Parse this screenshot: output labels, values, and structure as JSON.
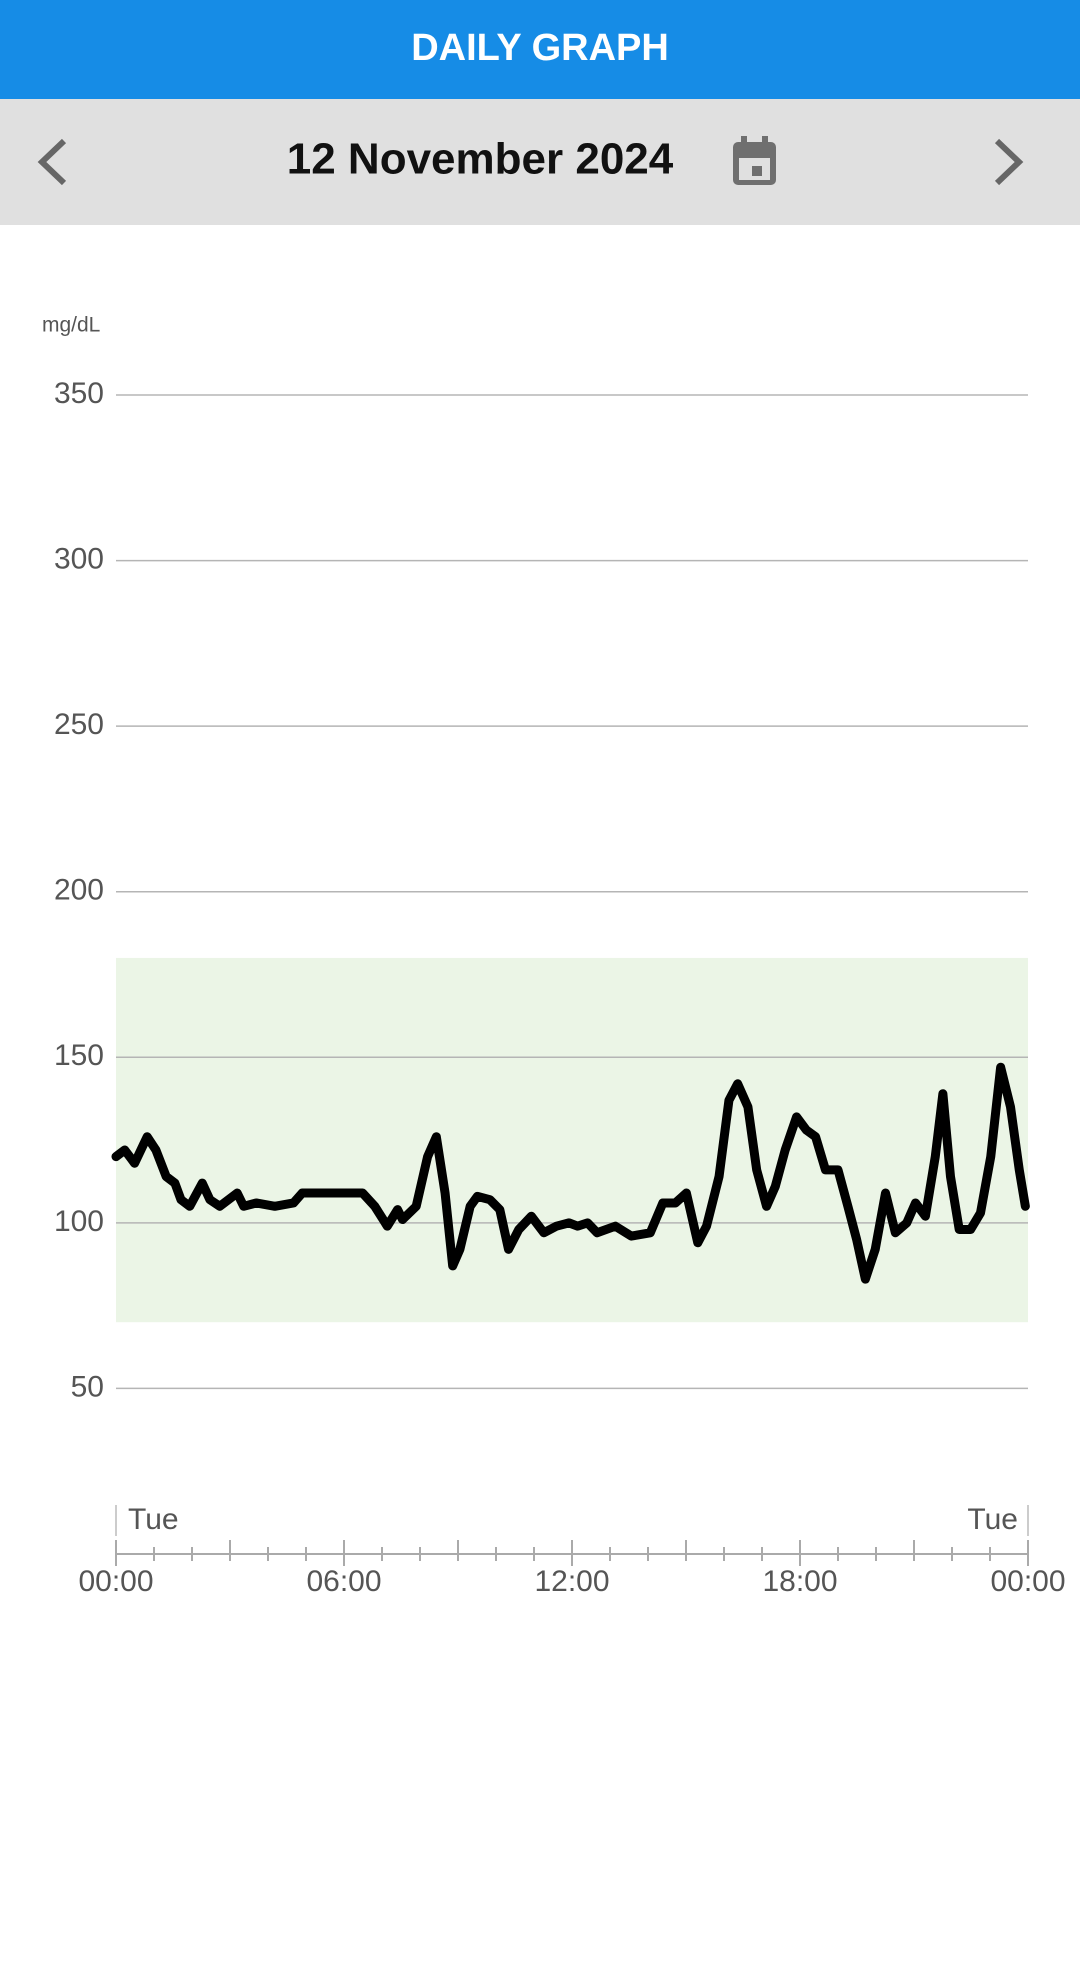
{
  "header": {
    "title": "DAILY GRAPH"
  },
  "date_bar": {
    "date": "12 November 2024"
  },
  "chart_data": {
    "type": "line",
    "y_unit": "mg/dL",
    "x": [
      0,
      0.23,
      0.49,
      0.82,
      1.05,
      1.32,
      1.55,
      1.71,
      1.94,
      2.27,
      2.47,
      2.73,
      3.19,
      3.36,
      3.69,
      4.18,
      4.67,
      4.9,
      5.43,
      5.83,
      6.49,
      6.81,
      7.14,
      7.41,
      7.54,
      7.9,
      8.2,
      8.43,
      8.66,
      8.86,
      9.05,
      9.32,
      9.51,
      9.84,
      10.1,
      10.33,
      10.6,
      10.93,
      11.26,
      11.59,
      11.92,
      12.15,
      12.41,
      12.66,
      13.14,
      13.56,
      14.06,
      14.39,
      14.72,
      15.01,
      15.31,
      15.54,
      15.87,
      16.13,
      16.36,
      16.63,
      16.86,
      17.12,
      17.35,
      17.61,
      17.91,
      18.17,
      18.41,
      18.67,
      19.0,
      19.26,
      19.49,
      19.72,
      19.98,
      20.25,
      20.51,
      20.81,
      21.04,
      21.3,
      21.56,
      21.76,
      21.96,
      22.19,
      22.49,
      22.75,
      23.02,
      23.28,
      23.54,
      23.77,
      23.93
    ],
    "series": [
      {
        "color": "#000000",
        "values": [
          120,
          122,
          118,
          126,
          122,
          114,
          112,
          107,
          105,
          112,
          107,
          105,
          109,
          105,
          106,
          105,
          106,
          109,
          109,
          109,
          109,
          105,
          99,
          104,
          101,
          105,
          120,
          126,
          109,
          87,
          92,
          105,
          108,
          107,
          104,
          92,
          98,
          102,
          97,
          99,
          100,
          99,
          100,
          97,
          99,
          96,
          97,
          106,
          106,
          109,
          94,
          99,
          114,
          137,
          142,
          135,
          116,
          105,
          111,
          122,
          132,
          128,
          126,
          116,
          116,
          105,
          95,
          83,
          92,
          109,
          97,
          100,
          106,
          102,
          120,
          139,
          114,
          98,
          98,
          103,
          120,
          147,
          135,
          116,
          105
        ]
      }
    ],
    "target_range": [
      70,
      180
    ],
    "target_color": "#ebf5e6",
    "day_labels": [
      "Tue",
      "Tue"
    ],
    "xlim": [
      0,
      24
    ],
    "xticks": [
      {
        "value": 0,
        "label": "00:00"
      },
      {
        "value": 6,
        "label": "06:00"
      },
      {
        "value": 12,
        "label": "12:00"
      },
      {
        "value": 18,
        "label": "18:00"
      },
      {
        "value": 24,
        "label": "00:00"
      }
    ],
    "x_minor_ticks": [
      1,
      2,
      3,
      4,
      5,
      7,
      8,
      9,
      10,
      11,
      13,
      14,
      15,
      16,
      17,
      19,
      20,
      21,
      22,
      23
    ],
    "ylim": [
      0,
      350
    ],
    "yticks": [
      50,
      100,
      150,
      200,
      250,
      300,
      350
    ],
    "grid": true
  }
}
